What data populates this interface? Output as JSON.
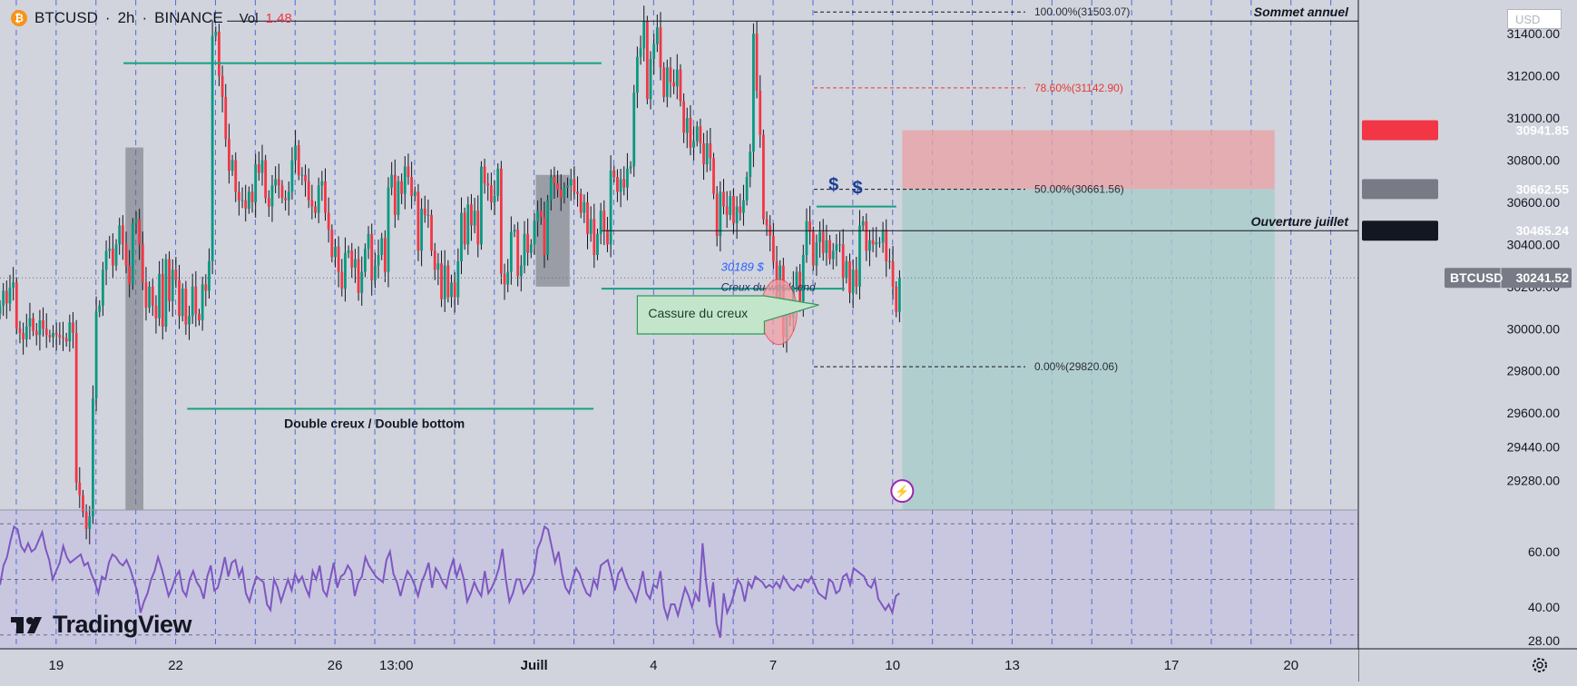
{
  "header": {
    "symbol": "BTCUSD",
    "timeframe": "2h",
    "exchange": "BINANCE",
    "vol_label": "Vol",
    "vol_value": "1.48",
    "coin_glyph": "₿",
    "currency": "USD"
  },
  "branding": {
    "name": "TradingView"
  },
  "colors": {
    "up": "#089981",
    "down": "#f23645",
    "accent": "#2962ff",
    "rsi": "#7e57c2",
    "level_line": "#14a085",
    "fib": "#e53935",
    "background": "#d1d4dc"
  },
  "chart_data": {
    "type": "candlestick",
    "symbol": "BTCUSD",
    "interval": "2h",
    "ylim": [
      29140,
      31560
    ],
    "y_ticks": [
      31400,
      31200,
      31000,
      30800,
      30600,
      30400,
      30200,
      30000,
      29800,
      29600,
      29440,
      29280
    ],
    "x_ticks": [
      {
        "label": "19",
        "day": 19
      },
      {
        "label": "22",
        "day": 22
      },
      {
        "label": "26",
        "day": 26
      },
      {
        "label": "13:00",
        "day": 27.54
      },
      {
        "label": "Juill",
        "day": 31
      },
      {
        "label": "4",
        "day": 34
      },
      {
        "label": "7",
        "day": 37
      },
      {
        "label": "10",
        "day": 40
      },
      {
        "label": "13",
        "day": 43
      },
      {
        "label": "17",
        "day": 47
      },
      {
        "label": "20",
        "day": 50
      }
    ],
    "price_badges": [
      {
        "value": "30941.85",
        "price": 30941.85,
        "style": "stop"
      },
      {
        "value": "30662.55",
        "price": 30662.55,
        "style": "entry"
      },
      {
        "value": "30465.24",
        "price": 30465.24,
        "style": "level"
      },
      {
        "label": "BTCUSD",
        "value": "30241.52",
        "price": 30241.52,
        "style": "last"
      }
    ],
    "fibonacci": [
      {
        "label": "100.00%(31503.07)",
        "price": 31503.07
      },
      {
        "label": "78.60%(31142.90)",
        "price": 31142.9
      },
      {
        "label": "50.00%(30661.56)",
        "price": 30661.56
      },
      {
        "label": "0.00%(29820.06)",
        "price": 29820.06
      }
    ],
    "horizontal_lines": [
      {
        "label": "Sommet annuel",
        "price": 31460,
        "from_day": 23.2
      },
      {
        "label": "Ouverture juillet",
        "price": 30465.24,
        "from_day": 32.6
      }
    ],
    "levels": [
      {
        "price": 31260,
        "from_day": 20.6,
        "to_day": 32.6
      },
      {
        "price": 29620,
        "from_day": 22.2,
        "to_day": 32.4
      },
      {
        "price": 30190,
        "from_day": 32.6,
        "to_day": 38.7
      },
      {
        "price": 30580,
        "from_day": 38.0,
        "to_day": 40.0
      }
    ],
    "position": {
      "entry": 30662.55,
      "stop": 30941.85,
      "target": 29140,
      "from_day": 40.15,
      "to_day": 49.5
    },
    "zones": [
      {
        "from_day": 20.65,
        "to_day": 21.1,
        "top": 30860,
        "bottom": 29140
      },
      {
        "from_day": 30.95,
        "to_day": 31.8,
        "top": 30730,
        "bottom": 30200
      }
    ],
    "annotations": [
      {
        "text": "Double creux / Double bottom",
        "day": 26.9,
        "price": 29530
      },
      {
        "text": "30189 $",
        "day": 35.6,
        "price": 30275
      },
      {
        "text": "Creux du week-end",
        "day": 35.6,
        "price": 30180
      },
      {
        "text": "Cassure du creux",
        "day": 33.7,
        "price": 30035
      },
      {
        "text": "$",
        "day": 38.3,
        "price": 30655
      },
      {
        "text": "$",
        "day": 38.9,
        "price": 30640
      }
    ],
    "candles": {
      "start_day": 17.5,
      "step_days": 0.08333,
      "closes": [
        30110,
        30180,
        30120,
        30195,
        30220,
        30000,
        29980,
        29950,
        30010,
        30050,
        29990,
        29970,
        30040,
        30000,
        29970,
        29960,
        29980,
        29970,
        29960,
        29955,
        29940,
        30030,
        29980,
        29270,
        29210,
        29130,
        29050,
        29110,
        29670,
        30080,
        30110,
        30280,
        30370,
        30380,
        30300,
        30400,
        30490,
        30400,
        30300,
        30210,
        30500,
        30520,
        30400,
        30220,
        30100,
        30200,
        30110,
        30050,
        30260,
        30010,
        30330,
        30130,
        30280,
        30230,
        30060,
        30190,
        30020,
        30060,
        30200,
        30070,
        30040,
        30210,
        30180,
        30320,
        31390,
        31410,
        31200,
        31100,
        30900,
        30750,
        30800,
        30650,
        30610,
        30610,
        30570,
        30650,
        30600,
        30780,
        30740,
        30800,
        30620,
        30580,
        30680,
        30710,
        30680,
        30620,
        30610,
        30650,
        30800,
        30870,
        30730,
        30730,
        30700,
        30610,
        30580,
        30550,
        30680,
        30700,
        30550,
        30470,
        30340,
        30390,
        30270,
        30190,
        30360,
        30370,
        30290,
        30330,
        30170,
        30270,
        30380,
        30450,
        30230,
        30300,
        30350,
        30430,
        30270,
        30670,
        30730,
        30540,
        30700,
        30640,
        30770,
        30720,
        30630,
        30650,
        30370,
        30570,
        30540,
        30540,
        30370,
        30280,
        30310,
        30140,
        30300,
        30150,
        30220,
        30150,
        30320,
        30550,
        30400,
        30590,
        30490,
        30560,
        30400,
        30770,
        30690,
        30680,
        30600,
        30630,
        30760,
        30260,
        30210,
        30270,
        30460,
        30470,
        30250,
        30300,
        30450,
        30360,
        30400,
        30510,
        30560,
        30530,
        30350,
        30610,
        30720,
        30690,
        30660,
        30620,
        30670,
        30680,
        30710,
        30650,
        30640,
        30550,
        30600,
        30450,
        30520,
        30350,
        30450,
        30560,
        30470,
        30400,
        30750,
        30720,
        30650,
        30710,
        30670,
        30760,
        30770,
        31120,
        31290,
        31330,
        31460,
        31090,
        31280,
        31350,
        31430,
        31240,
        31100,
        31240,
        31170,
        31150,
        31230,
        31080,
        30930,
        31000,
        30860,
        30890,
        30960,
        30880,
        30780,
        30880,
        30810,
        30640,
        30440,
        30650,
        30580,
        30540,
        30630,
        30500,
        30580,
        30550,
        30610,
        30720,
        30840,
        31400,
        31130,
        30920,
        30520,
        30490,
        30440,
        30320,
        30140,
        30300,
        29960,
        30080,
        30050,
        30200,
        30270,
        30130,
        30350,
        30510,
        30460,
        30300,
        30410,
        30460,
        30360,
        30420,
        30330,
        30370,
        30400,
        30400,
        30240,
        30320,
        30170,
        30280,
        30200,
        30490,
        30510,
        30370,
        30420,
        30400,
        30410,
        30410,
        30470,
        30320,
        30320,
        30200,
        30080,
        30240
      ]
    },
    "rsi": {
      "ylim": [
        25,
        75
      ],
      "y_ticks": [
        60,
        40,
        28
      ],
      "bands": [
        70,
        50,
        30
      ],
      "values": [
        48,
        55,
        58,
        64,
        69,
        68,
        62,
        60,
        63,
        60,
        61,
        64,
        67,
        61,
        57,
        50,
        53,
        56,
        62,
        58,
        56,
        57,
        58,
        59,
        55,
        56,
        52,
        49,
        45,
        51,
        50,
        56,
        59,
        58,
        56,
        55,
        57,
        54,
        50,
        46,
        38,
        42,
        45,
        50,
        53,
        58,
        54,
        49,
        44,
        47,
        51,
        53,
        46,
        44,
        50,
        53,
        49,
        47,
        43,
        51,
        55,
        46,
        47,
        52,
        58,
        51,
        56,
        57,
        51,
        54,
        45,
        42,
        47,
        51,
        50,
        49,
        41,
        39,
        50,
        47,
        42,
        46,
        50,
        46,
        52,
        49,
        51,
        47,
        44,
        53,
        50,
        55,
        46,
        44,
        50,
        56,
        47,
        51,
        52,
        55,
        53,
        44,
        49,
        51,
        58,
        55,
        53,
        51,
        50,
        49,
        57,
        60,
        52,
        49,
        44,
        49,
        53,
        51,
        48,
        44,
        49,
        52,
        56,
        47,
        54,
        52,
        49,
        47,
        53,
        57,
        51,
        55,
        50,
        42,
        45,
        49,
        46,
        44,
        53,
        45,
        47,
        50,
        54,
        61,
        50,
        42,
        45,
        50,
        50,
        45,
        47,
        49,
        52,
        61,
        64,
        69,
        68,
        62,
        56,
        60,
        52,
        47,
        45,
        50,
        54,
        52,
        48,
        45,
        44,
        50,
        47,
        55,
        56,
        57,
        52,
        46,
        52,
        54,
        50,
        47,
        45,
        42,
        47,
        53,
        45,
        43,
        48,
        47,
        53,
        40,
        36,
        41,
        41,
        37,
        42,
        47,
        44,
        40,
        45,
        42,
        63,
        49,
        40,
        49,
        34,
        29,
        45,
        38,
        41,
        45,
        50,
        48,
        42,
        49,
        47,
        51,
        50,
        49,
        47,
        48,
        47,
        49,
        47,
        51,
        49,
        47,
        46,
        48,
        47,
        50,
        49,
        51,
        48,
        45,
        44,
        43,
        50,
        49,
        45,
        46,
        51,
        52,
        48,
        54,
        53,
        52,
        51,
        48,
        47,
        50,
        43,
        41,
        39,
        41,
        38,
        44,
        45
      ]
    }
  }
}
